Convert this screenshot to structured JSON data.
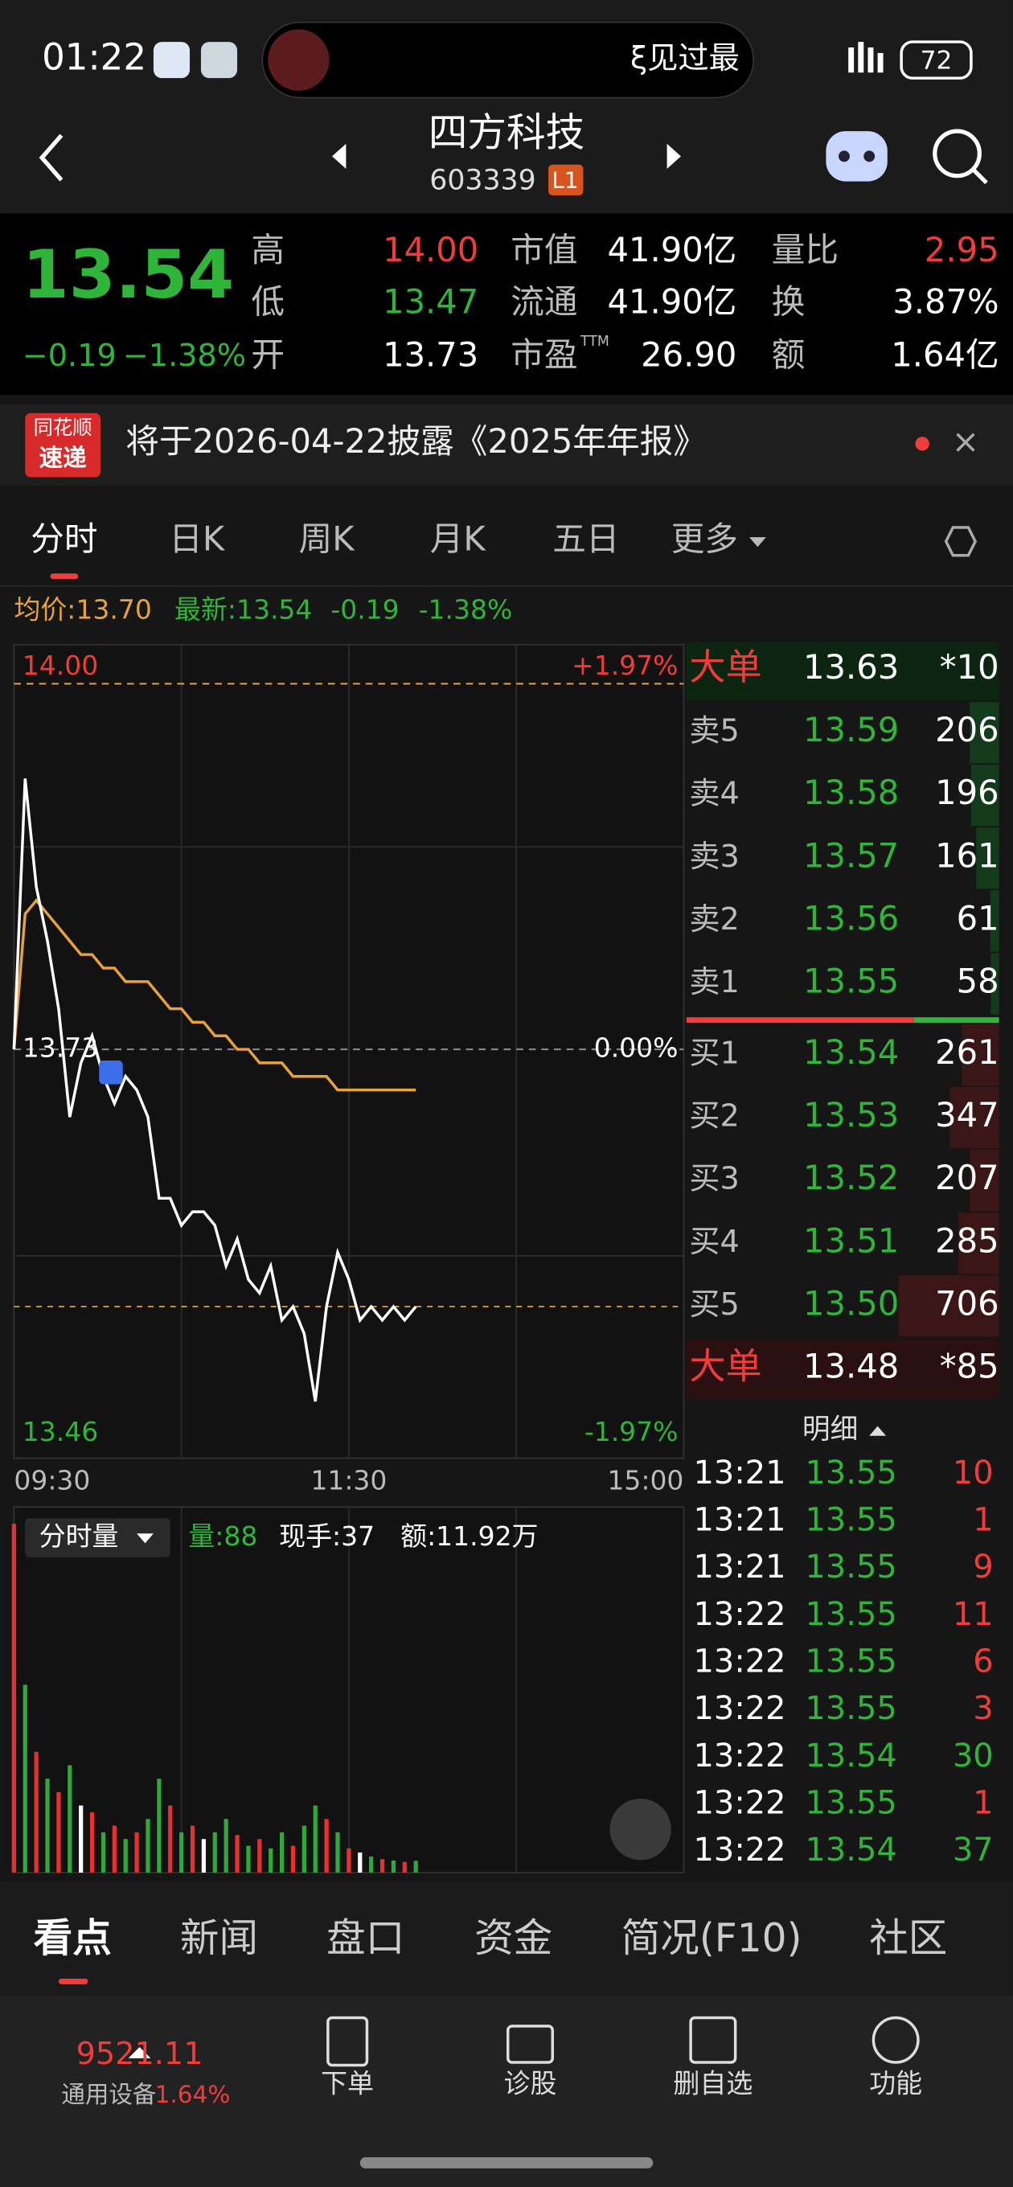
{
  "status": {
    "time": "01:22",
    "marquee": "ξ见过最",
    "battery": "72"
  },
  "header": {
    "name": "四方科技",
    "code": "603339",
    "level": "L1"
  },
  "quote": {
    "price": "13.54",
    "change": "−0.19",
    "change_pct": "−1.38%",
    "ttm": "TTM",
    "fields": [
      {
        "label": "高",
        "value": "14.00",
        "color": "#f23b3b"
      },
      {
        "label": "低",
        "value": "13.47",
        "color": "#2fb53a"
      },
      {
        "label": "开",
        "value": "13.73",
        "color": "#ffffff"
      },
      {
        "label": "市值",
        "value": "41.90亿",
        "color": "#ffffff"
      },
      {
        "label": "流通",
        "value": "41.90亿",
        "color": "#ffffff"
      },
      {
        "label": "市盈",
        "value": "26.90",
        "color": "#ffffff"
      },
      {
        "label": "量比",
        "value": "2.95",
        "color": "#f23b3b"
      },
      {
        "label": "换",
        "value": "3.87%",
        "color": "#ffffff"
      },
      {
        "label": "额",
        "value": "1.64亿",
        "color": "#ffffff"
      }
    ]
  },
  "banner": {
    "logo_top": "同花顺",
    "logo_bottom": "速递",
    "text": "将于2026-04-22披露《2025年年报》"
  },
  "tabs": [
    "分时",
    "日K",
    "周K",
    "月K",
    "五日",
    "更多"
  ],
  "info": {
    "avg": "均价:13.70",
    "latest": "最新:13.54",
    "change": "-0.19",
    "change_pct": "-1.38%"
  },
  "intraday": {
    "ylim": [
      13.46,
      14.0
    ],
    "yticks": [
      {
        "value": 14.0,
        "label": "14.00"
      },
      {
        "value": 13.73,
        "label": "13.73"
      },
      {
        "value": 13.46,
        "label": "13.46"
      }
    ],
    "pct_labels": [
      "+1.97%",
      "0.00%",
      "-1.97%"
    ],
    "x_labels": [
      "09:30",
      "11:30",
      "15:00"
    ],
    "price_color": "#ffffff",
    "avg_color": "#e8a23a",
    "price": [
      13.73,
      13.93,
      13.85,
      13.81,
      13.76,
      13.68,
      13.72,
      13.74,
      13.71,
      13.69,
      13.71,
      13.7,
      13.68,
      13.62,
      13.62,
      13.6,
      13.61,
      13.61,
      13.6,
      13.57,
      13.59,
      13.56,
      13.55,
      13.57,
      13.53,
      13.54,
      13.52,
      13.47,
      13.54,
      13.58,
      13.56,
      13.53,
      13.54,
      13.53,
      13.54,
      13.53,
      13.54
    ],
    "avg": [
      13.73,
      13.83,
      13.84,
      13.83,
      13.82,
      13.81,
      13.8,
      13.8,
      13.79,
      13.79,
      13.78,
      13.78,
      13.78,
      13.77,
      13.76,
      13.76,
      13.75,
      13.75,
      13.74,
      13.74,
      13.73,
      13.73,
      13.72,
      13.72,
      13.72,
      13.71,
      13.71,
      13.71,
      13.71,
      13.7,
      13.7,
      13.7,
      13.7,
      13.7,
      13.7,
      13.7,
      13.7
    ],
    "volume": [
      2600,
      1400,
      900,
      700,
      600,
      800,
      500,
      450,
      300,
      350,
      250,
      300,
      400,
      700,
      500,
      300,
      350,
      250,
      300,
      400,
      280,
      200,
      250,
      180,
      300,
      200,
      350,
      500,
      400,
      300,
      180,
      150,
      120,
      100,
      90,
      80,
      88
    ],
    "volume_colors": [
      "#e93030",
      "#2fa93b",
      "#e93030",
      "#2fa93b",
      "#e93030",
      "#2fa93b",
      "#ffffff",
      "#e93030",
      "#2fa93b",
      "#e93030",
      "#2fa93b",
      "#e93030",
      "#2fa93b",
      "#2fa93b",
      "#e93030",
      "#2fa93b",
      "#e93030",
      "#ffffff",
      "#2fa93b",
      "#2fa93b",
      "#e93030",
      "#2fa93b",
      "#e93030",
      "#2fa93b",
      "#2fa93b",
      "#e93030",
      "#2fa93b",
      "#2fa93b",
      "#e93030",
      "#2fa93b",
      "#e93030",
      "#ffffff",
      "#2fa93b",
      "#e93030",
      "#2fa93b",
      "#e93030",
      "#2fa93b"
    ],
    "vol_title": "分时量",
    "vol": "量:88",
    "hand": "现手:37",
    "amount": "额:11.92万"
  },
  "orderbook": {
    "rows": [
      [
        "大单",
        "13.63",
        "*10"
      ],
      [
        "卖5",
        "13.59",
        "206"
      ],
      [
        "卖4",
        "13.58",
        "196"
      ],
      [
        "卖3",
        "13.57",
        "161"
      ],
      [
        "卖2",
        "13.56",
        "61"
      ],
      [
        "卖1",
        "13.55",
        "58"
      ],
      [
        "买1",
        "13.54",
        "261"
      ],
      [
        "买2",
        "13.53",
        "347"
      ],
      [
        "买3",
        "13.52",
        "207"
      ],
      [
        "买4",
        "13.51",
        "285"
      ],
      [
        "买5",
        "13.50",
        "706"
      ],
      [
        "大单",
        "13.48",
        "*85"
      ]
    ],
    "detail_title": "明细",
    "trades": [
      [
        "13:21",
        "13.55",
        "10"
      ],
      [
        "13:21",
        "13.55",
        "1"
      ],
      [
        "13:21",
        "13.55",
        "9"
      ],
      [
        "13:22",
        "13.55",
        "11"
      ],
      [
        "13:22",
        "13.55",
        "6"
      ],
      [
        "13:22",
        "13.55",
        "3"
      ],
      [
        "13:22",
        "13.54",
        "30"
      ],
      [
        "13:22",
        "13.55",
        "1"
      ],
      [
        "13:22",
        "13.54",
        "37"
      ]
    ],
    "trade_colors": [
      "#f23b3b",
      "#f23b3b",
      "#f23b3b",
      "#f23b3b",
      "#f23b3b",
      "#f23b3b",
      "#2fb53a",
      "#f23b3b",
      "#2fb53a"
    ]
  },
  "bottom_tabs": [
    "看点",
    "新闻",
    "盘口",
    "资金",
    "简况(F10)",
    "社区"
  ],
  "nav": {
    "index": "9521.11",
    "sector": "通用设备",
    "sector_pct": "1.64%",
    "items": [
      "下单",
      "诊股",
      "删自选",
      "功能"
    ]
  }
}
